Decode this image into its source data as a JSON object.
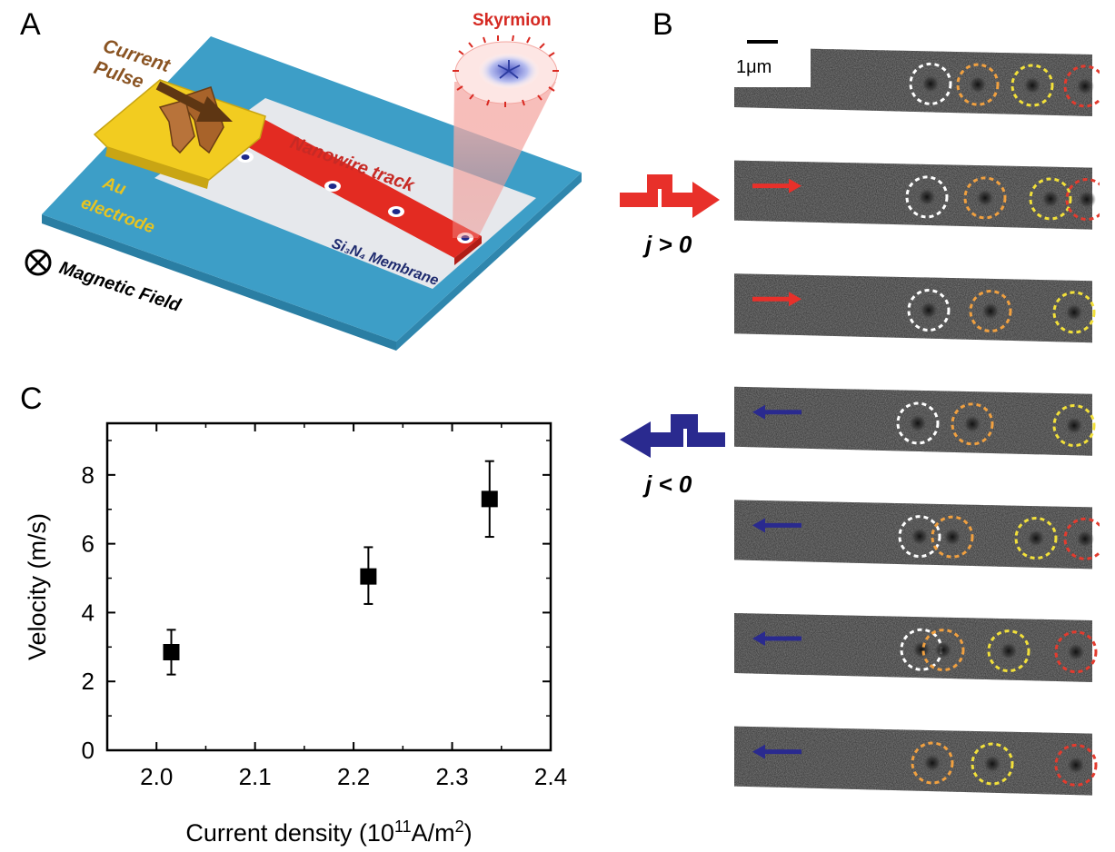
{
  "panels": {
    "a": "A",
    "b": "B",
    "c": "C"
  },
  "schematic": {
    "current_pulse_line1": "Current",
    "current_pulse_line2": "Pulse",
    "skyrmion": "Skyrmion",
    "electrode_line1": "Au",
    "electrode_line2": "electrode",
    "nanowire": "Nanowire track",
    "membrane": "Si₃N₄ Membrane",
    "field": "Magnetic Field",
    "colors": {
      "substrate": "#3d9ec7",
      "membrane": "#e6e8ec",
      "track": "#e32b22",
      "electrode": "#f2cc20",
      "pulse_arrow": "#7a4a1e",
      "text_brown": "#8a5423",
      "text_red": "#c72a25",
      "text_navy": "#1e2a6e",
      "text_gold": "#e8c420"
    }
  },
  "micrographs": {
    "scale_bar": "1μm",
    "positive_label": "j > 0",
    "negative_label": "j < 0",
    "colors": {
      "positive": "#e8302a",
      "negative": "#2a2a8f"
    },
    "frames": [
      {
        "direction": "none",
        "circles": [
          "white",
          "orange",
          "yellow",
          "red"
        ]
      },
      {
        "direction": "right",
        "circles": [
          "white",
          "orange",
          "yellow",
          "red"
        ]
      },
      {
        "direction": "right",
        "circles": [
          "white",
          "orange",
          "yellow"
        ]
      },
      {
        "direction": "left",
        "circles": [
          "white",
          "orange",
          "yellow"
        ]
      },
      {
        "direction": "left",
        "circles": [
          "white",
          "orange",
          "yellow",
          "red"
        ]
      },
      {
        "direction": "left",
        "circles": [
          "white",
          "orange",
          "yellow",
          "red"
        ]
      },
      {
        "direction": "left",
        "circles": [
          "orange",
          "yellow",
          "red"
        ]
      }
    ]
  },
  "chart_data": {
    "type": "scatter",
    "xlabel_main": "Current density (10",
    "xlabel_sup": "11",
    "xlabel_tail": "A/m",
    "xlabel_sup2": "2",
    "xlabel_end": ")",
    "ylabel": "Velocity (m/s)",
    "xlim": [
      1.95,
      2.4
    ],
    "ylim": [
      0,
      9.5
    ],
    "xticks": [
      "2.0",
      "2.1",
      "2.2",
      "2.3",
      "2.4"
    ],
    "xtick_values": [
      2.0,
      2.1,
      2.2,
      2.3,
      2.4
    ],
    "yticks": [
      "0",
      "2",
      "4",
      "6",
      "8"
    ],
    "ytick_values": [
      0,
      2,
      4,
      6,
      8
    ],
    "marker": "filled-square",
    "points": [
      {
        "x": 2.015,
        "y": 2.85,
        "err_low": 2.2,
        "err_high": 3.5
      },
      {
        "x": 2.215,
        "y": 5.05,
        "err_low": 4.25,
        "err_high": 5.9
      },
      {
        "x": 2.338,
        "y": 7.3,
        "err_low": 6.2,
        "err_high": 8.4
      }
    ]
  }
}
